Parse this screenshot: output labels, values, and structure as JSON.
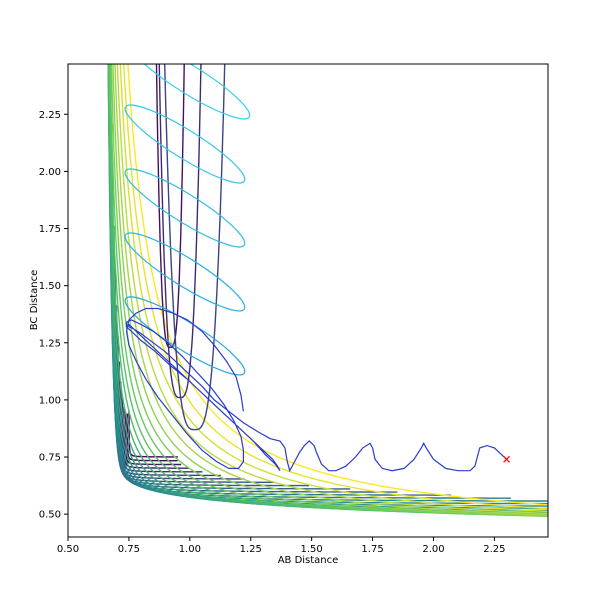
{
  "chart_data": {
    "type": "contour",
    "xlabel": "AB Distance",
    "ylabel": "BC Distance",
    "xlim": [
      0.5,
      2.47
    ],
    "ylim": [
      0.4,
      2.47
    ],
    "x_ticks": [
      0.5,
      0.75,
      1.0,
      1.25,
      1.5,
      1.75,
      2.0,
      2.25
    ],
    "x_tick_labels": [
      "0.50",
      "0.75",
      "1.00",
      "1.25",
      "1.50",
      "1.75",
      "2.00",
      "2.25"
    ],
    "y_ticks": [
      0.5,
      0.75,
      1.0,
      1.25,
      1.5,
      1.75,
      2.0,
      2.25
    ],
    "y_tick_labels": [
      "0.50",
      "0.75",
      "1.00",
      "1.25",
      "1.50",
      "1.75",
      "2.00",
      "2.25"
    ],
    "grid": false,
    "contour_colormap": [
      "#440154",
      "#3b528b",
      "#21918c",
      "#5ec962",
      "#fde725"
    ],
    "contour_level_count": 30,
    "trajectory": {
      "start": [
        2.3,
        0.74
      ],
      "start_marker": "x",
      "start_color": "#ff0000",
      "x": [
        2.3,
        2.25,
        2.22,
        2.19,
        2.18,
        2.17,
        2.15,
        2.1,
        2.05,
        2.0,
        1.97,
        1.96,
        1.95,
        1.92,
        1.88,
        1.83,
        1.79,
        1.76,
        1.75,
        1.74,
        1.71,
        1.68,
        1.64,
        1.6,
        1.57,
        1.54,
        1.52,
        1.51,
        1.49,
        1.47,
        1.45,
        1.43,
        1.41,
        1.4,
        1.39,
        1.37,
        1.33,
        1.28,
        1.22,
        1.16,
        1.1,
        1.05,
        1.0,
        0.95,
        0.9,
        0.85,
        0.8,
        0.77,
        0.75,
        0.75,
        0.77,
        0.81,
        0.86,
        0.92,
        0.98,
        1.04,
        1.1,
        1.16,
        1.21,
        1.26,
        1.3,
        1.34,
        1.36,
        1.37,
        1.37,
        1.35,
        1.31,
        1.26,
        1.2,
        1.13,
        1.06,
        0.99,
        0.92,
        0.86,
        0.8,
        0.76,
        0.74,
        0.74,
        0.76,
        0.8,
        0.85,
        0.91,
        0.97,
        1.03,
        1.09,
        1.14,
        1.18,
        1.21,
        1.22,
        1.22,
        1.2,
        1.16,
        1.11,
        1.05,
        0.99,
        0.93,
        0.87,
        0.82,
        0.78,
        0.75,
        0.74,
        0.75,
        0.78,
        0.82,
        0.87,
        0.93,
        0.99,
        1.05,
        1.1,
        1.15,
        1.19,
        1.21,
        1.22
      ],
      "y": [
        0.74,
        0.79,
        0.8,
        0.79,
        0.75,
        0.71,
        0.69,
        0.69,
        0.7,
        0.74,
        0.79,
        0.81,
        0.79,
        0.74,
        0.7,
        0.69,
        0.7,
        0.74,
        0.79,
        0.81,
        0.79,
        0.75,
        0.71,
        0.69,
        0.69,
        0.72,
        0.77,
        0.8,
        0.82,
        0.8,
        0.77,
        0.73,
        0.69,
        0.73,
        0.79,
        0.82,
        0.83,
        0.86,
        0.9,
        0.95,
        1.0,
        1.06,
        1.11,
        1.16,
        1.21,
        1.25,
        1.29,
        1.31,
        1.32,
        1.33,
        1.31,
        1.27,
        1.22,
        1.16,
        1.1,
        1.04,
        0.98,
        0.92,
        0.87,
        0.82,
        0.78,
        0.74,
        0.71,
        0.69,
        0.69,
        0.72,
        0.76,
        0.82,
        0.88,
        0.95,
        1.02,
        1.09,
        1.15,
        1.21,
        1.26,
        1.3,
        1.32,
        1.34,
        1.35,
        1.33,
        1.3,
        1.25,
        1.19,
        1.12,
        1.05,
        0.98,
        0.91,
        0.84,
        0.78,
        0.73,
        0.7,
        0.7,
        0.73,
        0.78,
        0.85,
        0.93,
        1.01,
        1.09,
        1.17,
        1.24,
        1.3,
        1.35,
        1.38,
        1.4,
        1.4,
        1.38,
        1.35,
        1.3,
        1.24,
        1.17,
        1.1,
        1.02,
        0.95
      ]
    },
    "oscillation_traces": [
      {
        "color": "#29a8e0",
        "center": [
          0.98,
          1.28
        ],
        "label": "band-1.25"
      },
      {
        "color": "#29b3e6",
        "center": [
          0.98,
          1.56
        ],
        "label": "band-1.55"
      },
      {
        "color": "#2fbde9",
        "center": [
          0.98,
          1.84
        ],
        "label": "band-1.85"
      },
      {
        "color": "#33c6ec",
        "center": [
          0.98,
          2.12
        ],
        "label": "band-2.10"
      },
      {
        "color": "#37d0ef",
        "center": [
          1.0,
          2.4
        ],
        "label": "band-2.40"
      }
    ]
  }
}
